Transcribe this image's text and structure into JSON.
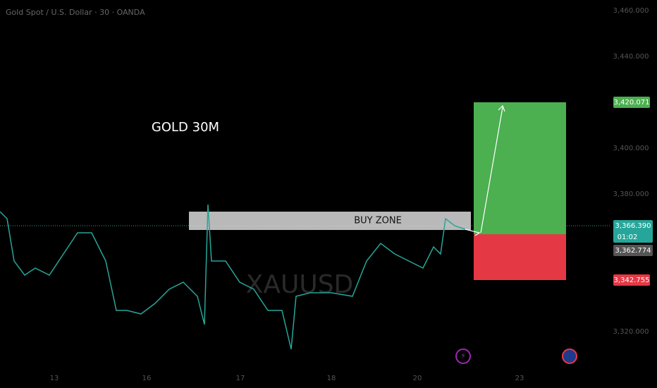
{
  "header": {
    "title": "Gold Spot / U.S. Dollar · 30 · OANDA"
  },
  "annotations": {
    "timeframe": "GOLD 30M",
    "zone": "BUY ZONE",
    "watermark": "XAUUSD"
  },
  "price_axis": {
    "ticks": [
      "3,460.000",
      "3,440.000",
      "3,400.000",
      "3,380.000",
      "3,320.000"
    ]
  },
  "price_labels": {
    "target": "3,420.071",
    "last": "3,366.390",
    "countdown": "01:02",
    "entry": "3,362.774",
    "stop": "3,342.755"
  },
  "time_axis": {
    "labels": [
      "13",
      "16",
      "17",
      "18",
      "20",
      "23"
    ]
  }
}
